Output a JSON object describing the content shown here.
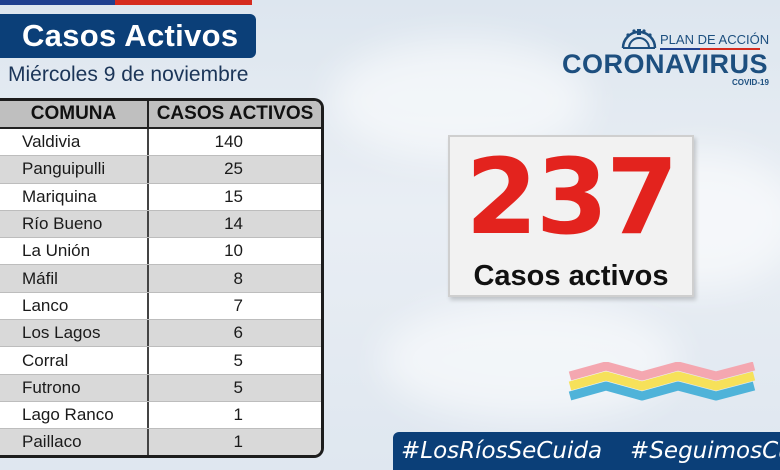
{
  "header": {
    "title": "Casos Activos",
    "date": "Miércoles 9 de noviembre"
  },
  "table": {
    "columns": [
      "COMUNA",
      "CASOS ACTIVOS"
    ],
    "rows": [
      {
        "comuna": "Valdivia",
        "casos": "140"
      },
      {
        "comuna": "Panguipulli",
        "casos": "25"
      },
      {
        "comuna": "Mariquina",
        "casos": "15"
      },
      {
        "comuna": "Río Bueno",
        "casos": "14"
      },
      {
        "comuna": "La Unión",
        "casos": "10"
      },
      {
        "comuna": "Máfil",
        "casos": "8"
      },
      {
        "comuna": "Lanco",
        "casos": "7"
      },
      {
        "comuna": "Los Lagos",
        "casos": "6"
      },
      {
        "comuna": "Corral",
        "casos": "5"
      },
      {
        "comuna": "Futrono",
        "casos": "5"
      },
      {
        "comuna": "Lago Ranco",
        "casos": "1"
      },
      {
        "comuna": "Paillaco",
        "casos": "1"
      }
    ]
  },
  "logo": {
    "plan": "PLAN DE ACCIÓN",
    "main": "CORONAVIRUS",
    "sub": "COVID-19"
  },
  "summary": {
    "total": "237",
    "label": "Casos activos"
  },
  "hashtags": [
    "#LosRíosSeCuida",
    "#SeguimosCuidándonos"
  ],
  "colors": {
    "navy": "#0b3f78",
    "red": "#e3231e",
    "logo_blue": "#1d4f7f"
  }
}
